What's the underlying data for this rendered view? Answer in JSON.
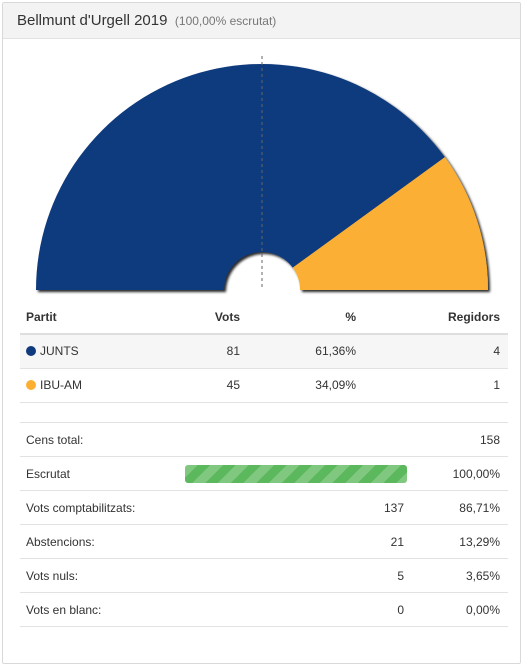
{
  "header": {
    "title": "Bellmunt d'Urgell 2019",
    "subtitle": "(100,00% escrutat)"
  },
  "results_table": {
    "columns": [
      "Partit",
      "Vots",
      "%",
      "Regidors"
    ],
    "rows": [
      {
        "party": "JUNTS",
        "votes": "81",
        "percent": "61,36%",
        "seats": "4",
        "color": "#103a7e"
      },
      {
        "party": "IBU-AM",
        "votes": "45",
        "percent": "34,09%",
        "seats": "1",
        "color": "#fbb034"
      }
    ]
  },
  "chart_data": {
    "type": "pie",
    "variant": "parliament-semicircle",
    "series": [
      {
        "name": "JUNTS",
        "value": 4,
        "color": "#103a7e"
      },
      {
        "name": "IBU-AM",
        "value": 1,
        "color": "#fbb034"
      }
    ],
    "total": 5,
    "majority_line": true
  },
  "stats": {
    "census_label": "Cens total:",
    "census_value": "158",
    "counted_label": "Escrutat",
    "counted_value": "100,00%",
    "counted_fraction": 1.0,
    "valid_label": "Vots comptabilitzats:",
    "valid_count": "137",
    "valid_pct": "86,71%",
    "abstention_label": "Abstencions:",
    "abstention_count": "21",
    "abstention_pct": "13,29%",
    "null_label": "Vots nuls:",
    "null_count": "5",
    "null_pct": "3,65%",
    "blank_label": "Vots en blanc:",
    "blank_count": "0",
    "blank_pct": "0,00%"
  }
}
